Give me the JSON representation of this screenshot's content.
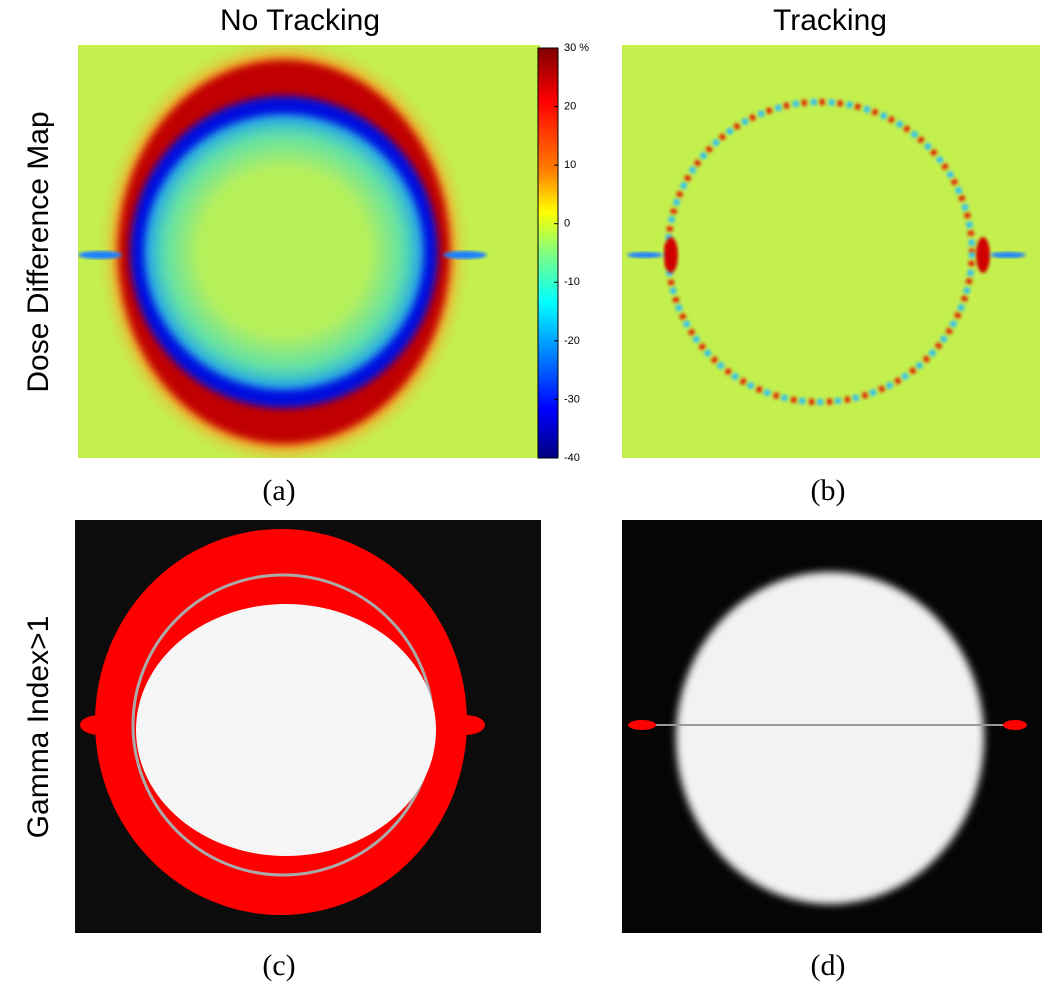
{
  "figure": {
    "column_titles": [
      "No Tracking",
      "Tracking"
    ],
    "row_titles": [
      "Dose Difference Map",
      "Gamma Index>1"
    ],
    "panel_labels": [
      "(a)",
      "(b)",
      "(c)",
      "(d)"
    ],
    "colorbar": {
      "range": [
        -40,
        30
      ],
      "ticks": [
        {
          "value": 30,
          "label": "30 %"
        },
        20,
        10,
        0,
        -10,
        -20,
        -30,
        -40
      ]
    }
  }
}
